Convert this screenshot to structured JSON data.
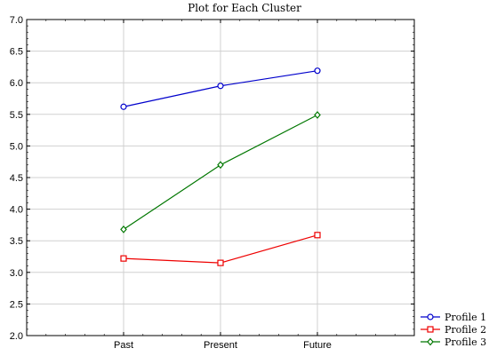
{
  "chart_data": {
    "type": "line",
    "title": "Plot for Each Cluster",
    "categories": [
      "Past",
      "Present",
      "Future"
    ],
    "ylim": [
      2.0,
      7.0
    ],
    "yticks": [
      "2.0",
      "2.5",
      "3.0",
      "3.5",
      "4.0",
      "4.5",
      "5.0",
      "5.5",
      "6.0",
      "6.5",
      "7.0"
    ],
    "grid": true,
    "legend_position": "bottom-right",
    "series": [
      {
        "name": "Profile 1",
        "values": [
          5.62,
          5.95,
          6.19
        ],
        "color": "#0000cc",
        "marker": "circle"
      },
      {
        "name": "Profile 2",
        "values": [
          3.22,
          3.15,
          3.59
        ],
        "color": "#ee0000",
        "marker": "square"
      },
      {
        "name": "Profile 3",
        "values": [
          3.68,
          4.7,
          5.49
        ],
        "color": "#007700",
        "marker": "diamond"
      }
    ]
  }
}
